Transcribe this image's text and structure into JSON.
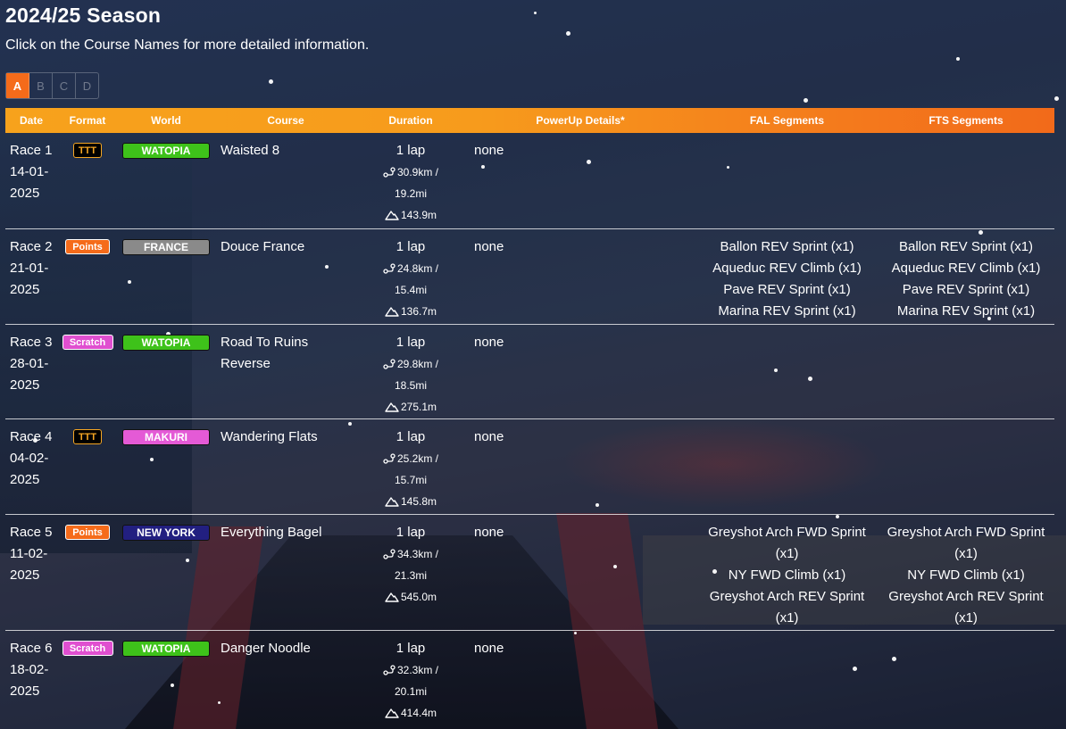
{
  "header": {
    "title": "2024/25 Season",
    "subtitle": "Click on the Course Names for more detailed information."
  },
  "tabs": [
    {
      "label": "A",
      "active": true
    },
    {
      "label": "B",
      "active": false
    },
    {
      "label": "C",
      "active": false
    },
    {
      "label": "D",
      "active": false
    }
  ],
  "table": {
    "columns": [
      "Date",
      "Format",
      "World",
      "Course",
      "Duration",
      "PowerUp Details*",
      "FAL Segments",
      "FTS Segments"
    ],
    "rows": [
      {
        "race": "Race 1",
        "date_a": "14-01-",
        "date_b": "2025",
        "format": "TTT",
        "world": "WATOPIA",
        "course": "Waisted 8",
        "laps": "1 lap",
        "km": "30.9km /",
        "mi": "19.2mi",
        "elev": "143.9m",
        "powerup": "none",
        "fal": [],
        "fts": []
      },
      {
        "race": "Race 2",
        "date_a": "21-01-",
        "date_b": "2025",
        "format": "Points",
        "world": "FRANCE",
        "course": "Douce France",
        "laps": "1 lap",
        "km": "24.8km /",
        "mi": "15.4mi",
        "elev": "136.7m",
        "powerup": "none",
        "fal": [
          "Ballon REV Sprint (x1)",
          "Aqueduc REV Climb (x1)",
          "Pave REV Sprint (x1)",
          "Marina REV Sprint (x1)"
        ],
        "fts": [
          "Ballon REV Sprint (x1)",
          "Aqueduc REV Climb (x1)",
          "Pave REV Sprint (x1)",
          "Marina REV Sprint (x1)"
        ]
      },
      {
        "race": "Race 3",
        "date_a": "28-01-",
        "date_b": "2025",
        "format": "Scratch",
        "world": "WATOPIA",
        "course": "Road To Ruins Reverse",
        "laps": "1 lap",
        "km": "29.8km /",
        "mi": "18.5mi",
        "elev": "275.1m",
        "powerup": "none",
        "fal": [],
        "fts": []
      },
      {
        "race": "Race 4",
        "date_a": "04-02-",
        "date_b": "2025",
        "format": "TTT",
        "world": "MAKURI",
        "course": "Wandering Flats",
        "laps": "1 lap",
        "km": "25.2km /",
        "mi": "15.7mi",
        "elev": "145.8m",
        "powerup": "none",
        "fal": [],
        "fts": []
      },
      {
        "race": "Race 5",
        "date_a": "11-02-",
        "date_b": "2025",
        "format": "Points",
        "world": "NEW YORK",
        "course": "Everything Bagel",
        "laps": "1 lap",
        "km": "34.3km /",
        "mi": "21.3mi",
        "elev": "545.0m",
        "powerup": "none",
        "fal": [
          "Greyshot Arch FWD Sprint (x1)",
          "NY FWD Climb (x1)",
          "Greyshot Arch REV Sprint (x1)"
        ],
        "fts": [
          "Greyshot Arch FWD Sprint (x1)",
          "NY FWD Climb (x1)",
          "Greyshot Arch REV Sprint (x1)"
        ]
      },
      {
        "race": "Race 6",
        "date_a": "18-02-",
        "date_b": "2025",
        "format": "Scratch",
        "world": "WATOPIA",
        "course": "Danger Noodle",
        "laps": "1 lap",
        "km": "32.3km /",
        "mi": "20.1mi",
        "elev": "414.4m",
        "powerup": "none",
        "fal": [],
        "fts": []
      }
    ]
  }
}
